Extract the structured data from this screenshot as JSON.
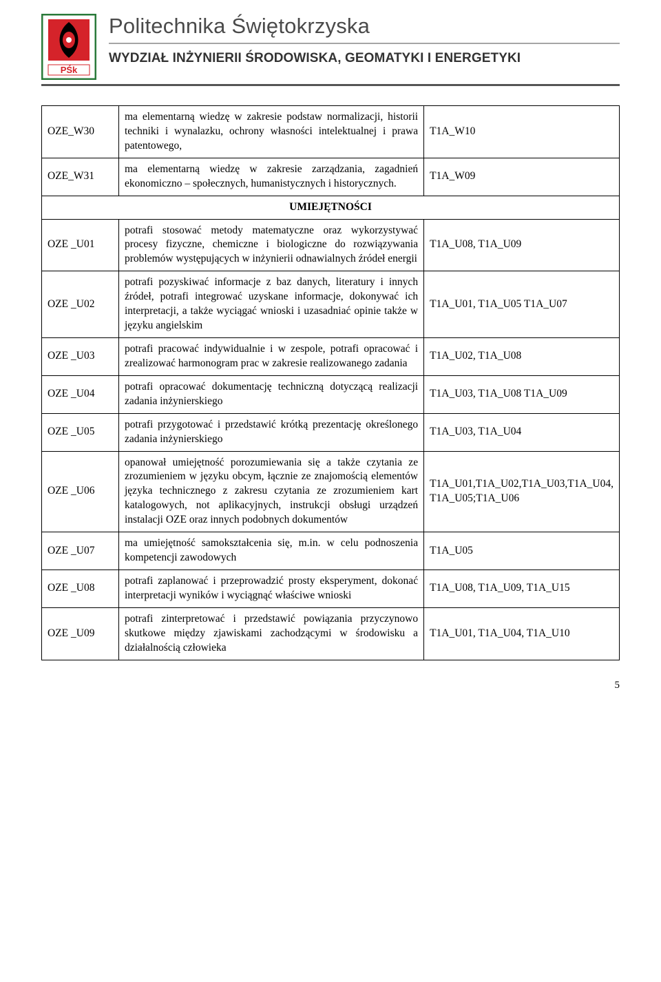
{
  "header": {
    "university": "Politechnika Świętokrzyska",
    "faculty": "WYDZIAŁ INŻYNIERII ŚRODOWISKA, GEOMATYKI I ENERGETYKI",
    "logo": {
      "border_color": "#2a7a3a",
      "inner_red": "#d5232a",
      "inner_black": "#000000",
      "label_text": "PŚk",
      "label_bg": "#ffffff",
      "label_color": "#d5232a"
    }
  },
  "section_label": "UMIEJĘTNOŚCI",
  "rows_pre": [
    {
      "code": "OZE_W30",
      "desc": "ma elementarną wiedzę w zakresie podstaw normalizacji, historii techniki i wynalazku, ochrony własności intelektualnej i prawa patentowego,",
      "ref": "T1A_W10"
    },
    {
      "code": "OZE_W31",
      "desc": "ma elementarną wiedzę w zakresie zarządzania, zagadnień ekonomiczno – społecznych, humanistycznych i historycznych.",
      "ref": "T1A_W09"
    }
  ],
  "rows_post": [
    {
      "code": "OZE _U01",
      "desc": "potrafi stosować metody matematyczne oraz wykorzystywać procesy fizyczne, chemiczne i biologiczne do rozwiązywania problemów występujących w inżynierii odnawialnych źródeł energii",
      "ref": "T1A_U08, T1A_U09"
    },
    {
      "code": "OZE _U02",
      "desc": "potrafi pozyskiwać informacje z baz danych, literatury i innych źródeł, potrafi integrować uzyskane informacje, dokonywać ich interpretacji, a także wyciągać wnioski i uzasadniać opinie także w języku angielskim",
      "ref": "T1A_U01, T1A_U05 T1A_U07"
    },
    {
      "code": "OZE _U03",
      "desc": "potrafi pracować indywidualnie i w zespole, potrafi opracować i zrealizować harmonogram prac w zakresie realizowanego zadania",
      "ref": "T1A_U02, T1A_U08"
    },
    {
      "code": "OZE _U04",
      "desc": "potrafi opracować dokumentację techniczną dotyczącą realizacji  zadania inżynierskiego",
      "ref": "T1A_U03, T1A_U08 T1A_U09"
    },
    {
      "code": "OZE _U05",
      "desc": "potrafi  przygotować i przedstawić krótką prezentację określonego zadania inżynierskiego",
      "ref": "T1A_U03, T1A_U04"
    },
    {
      "code": "OZE _U06",
      "desc": "opanował umiejętność porozumiewania się a także czytania ze zrozumieniem w języku obcym, łącznie ze znajomością elementów języka technicznego z zakresu czytania ze zrozumieniem kart katalogowych, not aplikacyjnych, instrukcji obsługi urządzeń instalacji OZE oraz innych podobnych dokumentów",
      "ref": "T1A_U01,T1A_U02,T1A_U03,T1A_U04, T1A_U05;T1A_U06"
    },
    {
      "code": "OZE _U07",
      "desc": "ma umiejętność samokształcenia się, m.in. w celu podnoszenia kompetencji zawodowych",
      "ref": "T1A_U05"
    },
    {
      "code": "OZE _U08",
      "desc": "potrafi zaplanować i przeprowadzić prosty eksperyment, dokonać interpretacji wyników i wyciągnąć właściwe wnioski",
      "ref": "T1A_U08, T1A_U09, T1A_U15"
    },
    {
      "code": "OZE _U09",
      "desc": "potrafi zinterpretować i przedstawić powiązania przyczynowo skutkowe między zjawiskami zachodzącymi w środowisku a działalnością człowieka",
      "ref": "T1A_U01, T1A_U04, T1A_U10"
    }
  ],
  "page_number": "5"
}
